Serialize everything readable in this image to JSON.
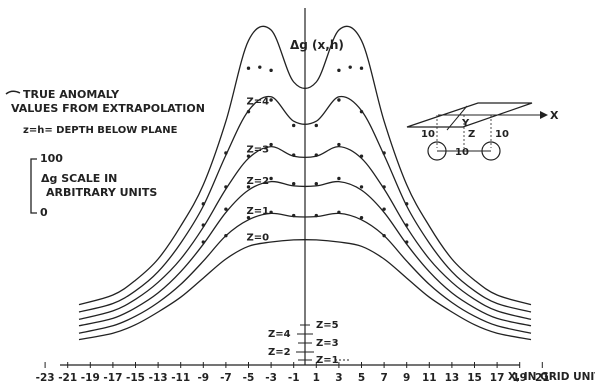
{
  "chart_data": {
    "type": "line",
    "title": "Δg (x,h)",
    "xlabel": "X, IN GRID UNITS",
    "ylabel": "",
    "xlim": [
      -23,
      22
    ],
    "ylim": [
      0,
      280
    ],
    "x_ticks": [
      -23,
      -21,
      -19,
      -17,
      -15,
      -13,
      -11,
      -9,
      -7,
      -5,
      -3,
      -1,
      1,
      3,
      5,
      7,
      9,
      11,
      13,
      15,
      17,
      19,
      21
    ],
    "x_tick_labels": [
      "-23",
      "-21",
      "-19",
      "-17",
      "-15",
      "-13",
      "-11",
      "-9",
      "-7",
      "-5",
      "-3",
      "-1",
      "1",
      "3",
      "5",
      "7",
      "9",
      "11",
      "13",
      "15",
      "17",
      "19",
      "21"
    ],
    "legend": {
      "true_anomaly": "TRUE ANOMALY",
      "extrapolation": "VALUES FROM EXTRAPOLATION",
      "depth_note": "z=h= DEPTH BELOW PLANE"
    },
    "scale_bar": {
      "top_label": "100",
      "bottom_label": "0",
      "caption_line1": "Δg SCALE IN",
      "caption_line2": "ARBITRARY UNITS",
      "value": 100
    },
    "baseline_labels": [
      "Z=4",
      "Z=5",
      "Z=3",
      "Z=2",
      "Z=1"
    ],
    "curves": [
      {
        "label": "Z=0",
        "xs": [
          -20,
          -17,
          -15,
          -13,
          -11,
          -9,
          -7,
          -5,
          -3,
          -1,
          1,
          3,
          5,
          7,
          9,
          11,
          13,
          15,
          17,
          20
        ],
        "ys": [
          24,
          30,
          38,
          50,
          64,
          82,
          100,
          112,
          116,
          118,
          118,
          116,
          112,
          100,
          82,
          64,
          50,
          38,
          30,
          24
        ]
      },
      {
        "label": "Z=1",
        "xs": [
          -20,
          -17,
          -15,
          -13,
          -11,
          -9,
          -7,
          -5,
          -3,
          -1,
          1,
          3,
          5,
          7,
          9,
          11,
          13,
          15,
          17,
          20
        ],
        "ys": [
          30,
          37,
          46,
          59,
          76,
          98,
          122,
          137,
          143,
          140,
          140,
          143,
          137,
          122,
          98,
          76,
          59,
          46,
          37,
          30
        ]
      },
      {
        "label": "Z=2",
        "xs": [
          -20,
          -17,
          -15,
          -13,
          -11,
          -9,
          -7,
          -5,
          -3,
          -1,
          1,
          3,
          5,
          7,
          9,
          11,
          13,
          15,
          17,
          20
        ],
        "ys": [
          37,
          44,
          54,
          68,
          88,
          114,
          144,
          165,
          173,
          169,
          169,
          173,
          165,
          144,
          114,
          88,
          68,
          54,
          44,
          37
        ]
      },
      {
        "label": "Z=3",
        "xs": [
          -20,
          -17,
          -15,
          -13,
          -11,
          -9,
          -7,
          -5,
          -3,
          -1,
          1,
          3,
          5,
          7,
          9,
          11,
          13,
          15,
          17,
          20
        ],
        "ys": [
          43,
          51,
          62,
          78,
          100,
          130,
          166,
          195,
          206,
          197,
          197,
          206,
          195,
          166,
          130,
          100,
          78,
          62,
          51,
          43
        ]
      },
      {
        "label": "Z=4",
        "xs": [
          -20,
          -17,
          -15,
          -13,
          -11,
          -9,
          -7,
          -5,
          -3,
          -1,
          1,
          3,
          5,
          7,
          9,
          11,
          13,
          15,
          17,
          20
        ],
        "ys": [
          50,
          58,
          70,
          88,
          115,
          150,
          198,
          240,
          253,
          230,
          230,
          253,
          240,
          198,
          150,
          115,
          88,
          70,
          58,
          50
        ]
      },
      {
        "label": "",
        "xs": [
          -20,
          -17,
          -15,
          -13,
          -11,
          -9,
          -7,
          -5,
          -3,
          -1,
          1,
          3,
          5,
          7,
          9,
          11,
          13,
          15,
          17,
          20
        ],
        "ys": [
          57,
          66,
          80,
          100,
          131,
          170,
          230,
          306,
          316,
          267,
          267,
          316,
          306,
          230,
          170,
          131,
          100,
          80,
          66,
          57
        ]
      }
    ],
    "extrapolation_points": [
      {
        "for": "Z=1",
        "xs": [
          -7,
          -5,
          -3,
          -1,
          1,
          3,
          5,
          7
        ],
        "ys": [
          122,
          139,
          144,
          141,
          141,
          144,
          139,
          122
        ]
      },
      {
        "for": "Z=2",
        "xs": [
          -9,
          -7,
          -5,
          -3,
          -1,
          1,
          3,
          5,
          7,
          9
        ],
        "ys": [
          116,
          147,
          168,
          176,
          171,
          171,
          176,
          168,
          147,
          116
        ]
      },
      {
        "for": "Z=3",
        "xs": [
          -9,
          -7,
          -5,
          -3,
          -1,
          1,
          3,
          5,
          7,
          9
        ],
        "ys": [
          132,
          168,
          197,
          208,
          198,
          198,
          208,
          197,
          168,
          132
        ]
      },
      {
        "for": "Z=4",
        "xs": [
          -9,
          -7,
          -5,
          -3,
          -1,
          1,
          3,
          5,
          7,
          9
        ],
        "ys": [
          152,
          200,
          239,
          250,
          226,
          226,
          250,
          239,
          200,
          152
        ]
      },
      {
        "for": "top",
        "xs": [
          -5,
          -4,
          -3,
          3,
          4,
          5
        ],
        "ys": [
          280,
          281,
          278,
          278,
          281,
          280
        ]
      }
    ],
    "inset": {
      "x_label": "X",
      "y_label": "Y",
      "z_label": "Z",
      "left_label": "10",
      "right_label": "10",
      "bottom_label": "10"
    }
  }
}
